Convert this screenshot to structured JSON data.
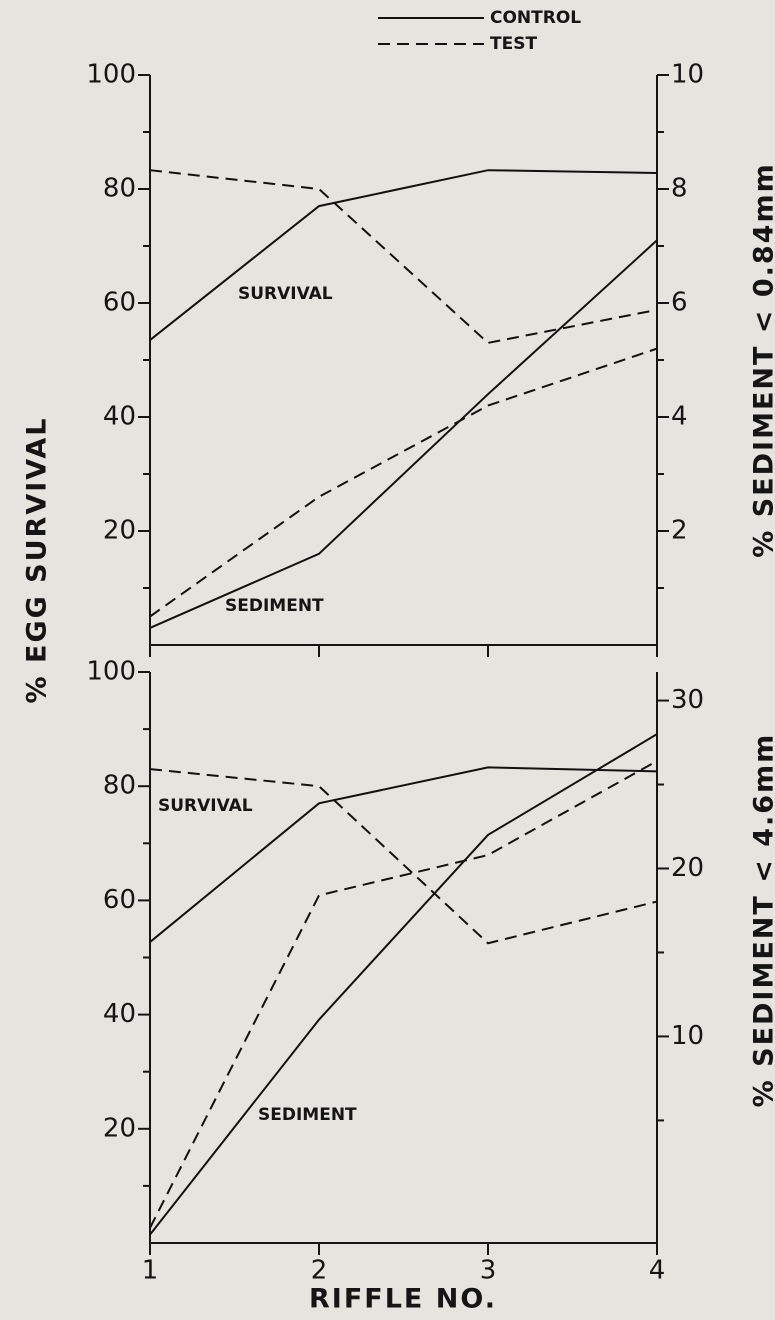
{
  "chart_data": [
    {
      "type": "line",
      "ylabel": "% EGG SURVIVAL",
      "y2label": "% SEDIMENT < 0.84mm",
      "annotations": [
        "SURVIVAL",
        "SEDIMENT"
      ],
      "x": [
        1,
        2,
        3,
        4
      ],
      "xlim": [
        1,
        4
      ],
      "xticks": [
        1,
        2,
        3,
        4
      ],
      "ylim": [
        0,
        100
      ],
      "yticks": [
        20,
        40,
        60,
        80,
        100
      ],
      "yminor": [
        10,
        30,
        50,
        70,
        90
      ],
      "y2lim": [
        0,
        10
      ],
      "y2ticks": [
        2,
        4,
        6,
        8,
        10
      ],
      "y2minor": [
        1,
        3,
        5,
        7,
        9
      ],
      "series": [
        {
          "name": "CONTROL",
          "style": "solid",
          "color": "#111111",
          "values": [
            53.5,
            77,
            83.3,
            82.8
          ]
        },
        {
          "name": "TEST",
          "style": "dashed",
          "color": "#111111",
          "values": [
            83.3,
            80,
            53,
            58.8
          ]
        },
        {
          "style": "solid",
          "color": "#111111",
          "axis": "y2",
          "values": [
            0.3,
            1.6,
            4.4,
            7.1
          ]
        },
        {
          "style": "dashed",
          "color": "#111111",
          "axis": "y2",
          "values": [
            0.5,
            2.6,
            4.2,
            5.2
          ]
        }
      ]
    },
    {
      "type": "line",
      "xlabel": "RIFFLE NO.",
      "y2label": "% SEDIMENT < 4.6mm",
      "annotations": [
        "SURVIVAL",
        "SEDIMENT"
      ],
      "x": [
        1,
        2,
        3,
        4
      ],
      "xlim": [
        1,
        4
      ],
      "xticks": [
        1,
        2,
        3,
        4
      ],
      "ylim": [
        0,
        100
      ],
      "yticks": [
        20,
        40,
        60,
        80,
        100
      ],
      "yminor": [
        10,
        30,
        50,
        70,
        90
      ],
      "y2lim": [
        -2.3,
        31.7
      ],
      "y2ticks": [
        10,
        20,
        30
      ],
      "y2minor": [
        5,
        15,
        25
      ],
      "series": [
        {
          "style": "solid",
          "color": "#111111",
          "values": [
            52.7,
            77,
            83.3,
            82.6
          ]
        },
        {
          "style": "dashed",
          "color": "#111111",
          "values": [
            83,
            80,
            52.5,
            59.8
          ]
        },
        {
          "style": "solid",
          "color": "#111111",
          "axis": "y2",
          "values": [
            -1.8,
            11,
            22,
            28
          ]
        },
        {
          "style": "dashed",
          "color": "#111111",
          "axis": "y2",
          "values": [
            -1.4,
            18.4,
            20.8,
            26.4
          ]
        }
      ]
    }
  ]
}
